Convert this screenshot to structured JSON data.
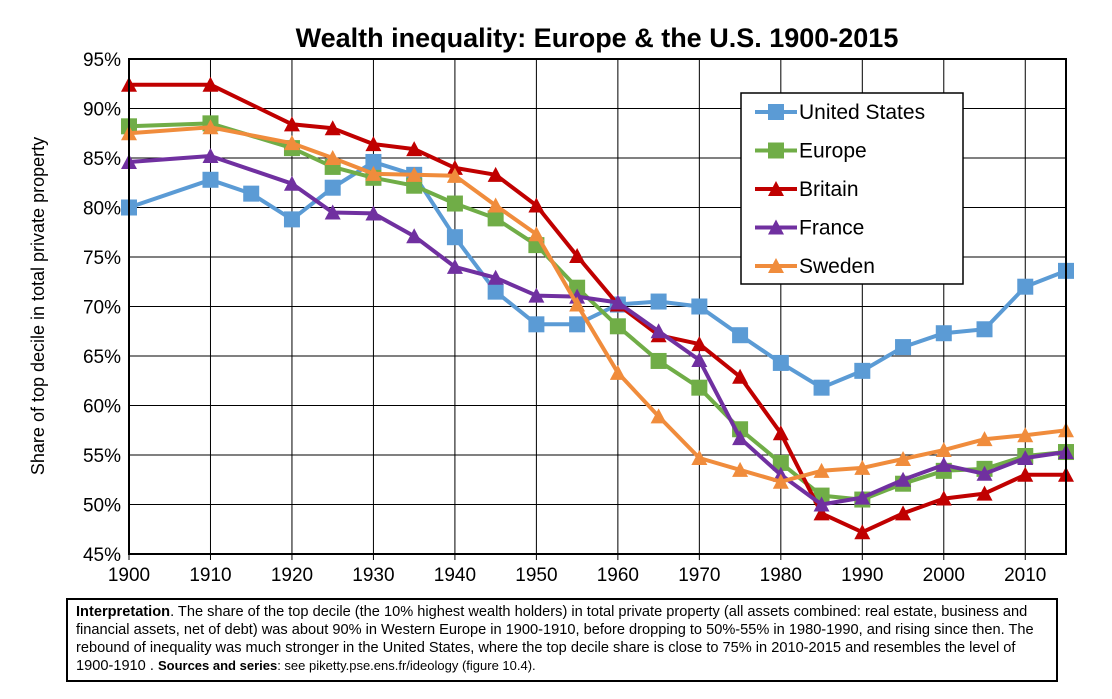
{
  "chart_data": {
    "type": "line",
    "title": "Wealth inequality: Europe & the U.S. 1900-2015",
    "ylabel": "Share of top decile in total private property",
    "xlabel": "",
    "xlim": [
      1900,
      2015
    ],
    "ylim": [
      45,
      95
    ],
    "x_ticks": [
      "1900",
      "1910",
      "1920",
      "1930",
      "1940",
      "1950",
      "1960",
      "1970",
      "1980",
      "1990",
      "2000",
      "2010"
    ],
    "y_ticks": [
      "45%",
      "50%",
      "55%",
      "60%",
      "65%",
      "70%",
      "75%",
      "80%",
      "85%",
      "90%",
      "95%"
    ],
    "grid": true,
    "legend_position": "top-right",
    "series": [
      {
        "name": "United States",
        "color": "#5b9bd5",
        "marker": "square",
        "x": [
          1900,
          1910,
          1915,
          1920,
          1925,
          1930,
          1935,
          1940,
          1945,
          1950,
          1955,
          1960,
          1965,
          1970,
          1975,
          1980,
          1985,
          1990,
          1995,
          2000,
          2005,
          2010,
          2015
        ],
        "y": [
          80.0,
          82.8,
          81.4,
          78.8,
          82.0,
          84.6,
          83.3,
          77.0,
          71.5,
          68.2,
          68.2,
          70.2,
          70.5,
          70.0,
          67.1,
          64.3,
          61.8,
          63.5,
          65.9,
          67.3,
          67.7,
          72.0,
          73.6
        ]
      },
      {
        "name": "Europe",
        "color": "#70ad47",
        "marker": "square",
        "x": [
          1900,
          1910,
          1920,
          1925,
          1930,
          1935,
          1940,
          1945,
          1950,
          1955,
          1960,
          1965,
          1970,
          1975,
          1980,
          1985,
          1990,
          1995,
          2000,
          2005,
          2010,
          2015
        ],
        "y": [
          88.2,
          88.5,
          86.0,
          84.1,
          83.0,
          82.2,
          80.4,
          78.9,
          76.2,
          71.9,
          68.0,
          64.5,
          61.8,
          57.6,
          54.2,
          50.9,
          50.5,
          52.1,
          53.4,
          53.6,
          54.9,
          55.3
        ]
      },
      {
        "name": "Britain",
        "color": "#c00000",
        "marker": "triangle",
        "x": [
          1900,
          1910,
          1920,
          1925,
          1930,
          1935,
          1940,
          1945,
          1950,
          1955,
          1960,
          1965,
          1970,
          1975,
          1980,
          1985,
          1990,
          1995,
          2000,
          2005,
          2010,
          2015
        ],
        "y": [
          92.4,
          92.4,
          88.4,
          88.0,
          86.4,
          85.9,
          84.0,
          83.3,
          80.2,
          75.1,
          70.2,
          67.1,
          66.2,
          62.9,
          57.2,
          49.1,
          47.2,
          49.1,
          50.6,
          51.1,
          53.0,
          53.0
        ]
      },
      {
        "name": "France",
        "color": "#7030a0",
        "marker": "triangle",
        "x": [
          1900,
          1910,
          1920,
          1925,
          1930,
          1935,
          1940,
          1945,
          1950,
          1955,
          1960,
          1965,
          1970,
          1975,
          1980,
          1985,
          1990,
          1995,
          2000,
          2005,
          2010,
          2015
        ],
        "y": [
          84.6,
          85.2,
          82.4,
          79.5,
          79.4,
          77.1,
          74.0,
          72.9,
          71.1,
          71.0,
          70.4,
          67.5,
          64.6,
          56.7,
          53.0,
          50.0,
          50.7,
          52.5,
          54.0,
          53.1,
          54.7,
          55.3
        ]
      },
      {
        "name": "Sweden",
        "color": "#f08c3c",
        "marker": "triangle",
        "x": [
          1900,
          1910,
          1920,
          1925,
          1930,
          1935,
          1940,
          1945,
          1950,
          1955,
          1960,
          1965,
          1970,
          1975,
          1980,
          1985,
          1990,
          1995,
          2000,
          2005,
          2010,
          2015
        ],
        "y": [
          87.5,
          88.1,
          86.5,
          85.0,
          83.4,
          83.3,
          83.2,
          80.2,
          77.3,
          70.2,
          63.3,
          58.9,
          54.7,
          53.5,
          52.3,
          53.4,
          53.7,
          54.6,
          55.5,
          56.6,
          57.0,
          57.5
        ]
      }
    ]
  },
  "caption": {
    "label": "Interpretation",
    "text": ". The share of the top decile (the 10% highest wealth holders) in total private property (all assets combined: real estate, business and financial assets, net of debt) was about 90% in Western Europe in 1900-1910, before dropping to 50%-55% in 1980-1990, and rising since then. The rebound of inequality was much stronger in the United States, where the top decile share is close to 75% in 2010-2015 and resembles the level of 1900-1910 . ",
    "sources_label": "Sources and series",
    "sources_text": ": see piketty.pse.ens.fr/ideology (figure 10.4)."
  }
}
